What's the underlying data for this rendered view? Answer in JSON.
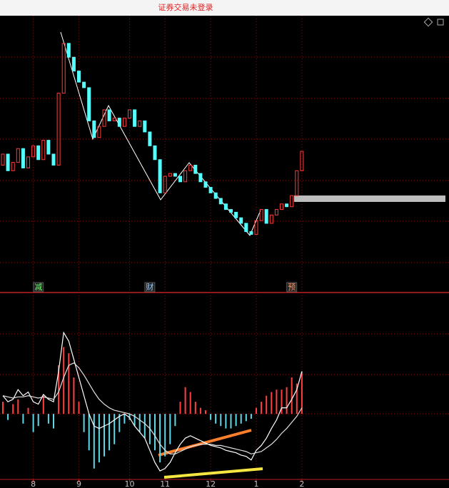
{
  "header": {
    "title": "证券交易未登录"
  },
  "chart_data": [
    {
      "type": "candlestick",
      "open": [
        46,
        50,
        44,
        47,
        52,
        45,
        49,
        53,
        48,
        55,
        50,
        46,
        72,
        90,
        85,
        80,
        76,
        74,
        62,
        56,
        60,
        66,
        62,
        63,
        60,
        63,
        66,
        60,
        62,
        58,
        53,
        48,
        36,
        42,
        43,
        42,
        40,
        44,
        46,
        43,
        40,
        38,
        36,
        34,
        32,
        30,
        29,
        27,
        25,
        22,
        21,
        26,
        30,
        25,
        28,
        30,
        32,
        31,
        35,
        44
      ],
      "close": [
        50,
        44,
        47,
        52,
        45,
        49,
        53,
        48,
        55,
        50,
        46,
        72,
        90,
        85,
        80,
        76,
        74,
        62,
        56,
        60,
        66,
        62,
        63,
        60,
        63,
        66,
        60,
        62,
        58,
        53,
        48,
        36,
        42,
        43,
        42,
        40,
        44,
        46,
        43,
        40,
        38,
        36,
        34,
        32,
        30,
        29,
        27,
        25,
        22,
        21,
        26,
        30,
        25,
        28,
        30,
        32,
        31,
        35,
        44,
        51
      ],
      "ylim": [
        0,
        100
      ],
      "up_color": "#ff3c3c",
      "down_color": "#54ffff",
      "events": [
        {
          "label": "减",
          "index": 7
        },
        {
          "label": "财",
          "index": 29
        },
        {
          "label": "预",
          "index": 57
        }
      ]
    },
    {
      "type": "macd",
      "values": [
        10,
        -5,
        8,
        12,
        -8,
        5,
        -15,
        -10,
        15,
        -8,
        -12,
        40,
        55,
        50,
        30,
        10,
        -15,
        -30,
        -45,
        -40,
        -35,
        -30,
        -25,
        -15,
        -8,
        -5,
        -10,
        -15,
        -20,
        -25,
        -30,
        -40,
        -35,
        -25,
        -10,
        10,
        22,
        18,
        10,
        5,
        3,
        -5,
        -8,
        -10,
        -12,
        -12,
        -10,
        -8,
        -6,
        -4,
        5,
        10,
        15,
        18,
        20,
        20,
        22,
        30,
        25,
        35
      ],
      "series": [
        {
          "color": "#ffffff",
          "values": [
            15,
            10,
            12,
            20,
            15,
            18,
            10,
            8,
            16,
            12,
            10,
            35,
            67,
            60,
            45,
            30,
            15,
            0,
            -10,
            -12,
            -10,
            -8,
            -5,
            -2,
            0,
            -3,
            -10,
            -15,
            -20,
            -30,
            -40,
            -47,
            -45,
            -40,
            -32,
            -25,
            -20,
            -18,
            -20,
            -22,
            -24,
            -26,
            -27,
            -28,
            -30,
            -31,
            -32,
            -34,
            -35,
            -38,
            -30,
            -26,
            -20,
            -12,
            -5,
            5,
            5,
            12,
            20,
            35
          ]
        },
        {
          "color": "#e0e0e0",
          "values": [
            15,
            14,
            13,
            14,
            14,
            15,
            14,
            13,
            14,
            13,
            12,
            18,
            30,
            40,
            42,
            38,
            32,
            25,
            18,
            12,
            8,
            5,
            3,
            2,
            1,
            0,
            -2,
            -5,
            -8,
            -12,
            -18,
            -25,
            -30,
            -33,
            -33,
            -31,
            -29,
            -27,
            -26,
            -25,
            -25,
            -25,
            -26,
            -26,
            -27,
            -28,
            -29,
            -30,
            -31,
            -33,
            -32,
            -31,
            -28,
            -25,
            -21,
            -16,
            -12,
            -7,
            -2,
            5
          ]
        }
      ],
      "ylim": [
        -54,
        100
      ],
      "up_color": "#ff4040",
      "down_color": "#5fd8e8",
      "xticks": [
        {
          "value": 6,
          "label": "8"
        },
        {
          "value": 15,
          "label": "9"
        },
        {
          "value": 25,
          "label": "10"
        },
        {
          "value": 32,
          "label": "11"
        },
        {
          "value": 41,
          "label": "12"
        },
        {
          "value": 50,
          "label": "1"
        },
        {
          "value": 59,
          "label": "2"
        }
      ]
    }
  ]
}
